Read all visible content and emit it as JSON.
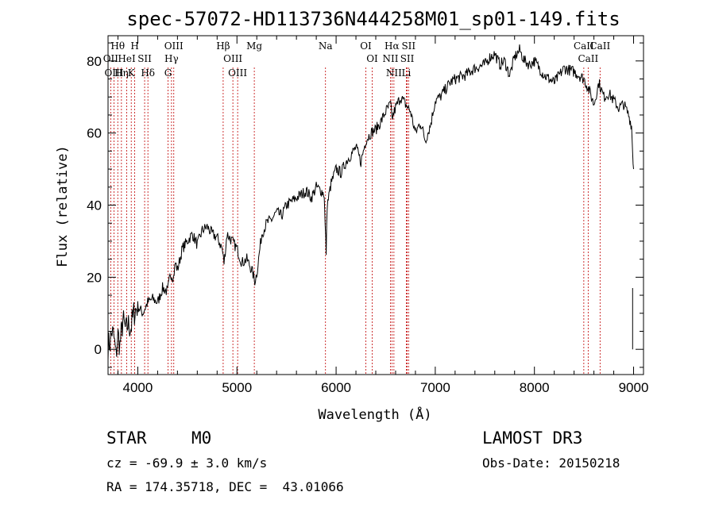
{
  "chart_data": {
    "type": "line",
    "title": "spec-57072-HD113736N444258M01_sp01-149.fits",
    "xlabel": "Wavelength (Å)",
    "ylabel": "Flux (relative)",
    "xlim": [
      3700,
      9100
    ],
    "ylim": [
      -7,
      87
    ],
    "xticks": [
      4000,
      5000,
      6000,
      7000,
      8000,
      9000
    ],
    "yticks": [
      0,
      20,
      40,
      60,
      80
    ],
    "series": [
      {
        "name": "flux",
        "x": [
          3700,
          3720,
          3740,
          3760,
          3780,
          3800,
          3820,
          3850,
          3880,
          3900,
          3930,
          3960,
          4000,
          4050,
          4100,
          4150,
          4200,
          4250,
          4300,
          4330,
          4360,
          4380,
          4400,
          4450,
          4500,
          4550,
          4600,
          4650,
          4700,
          4750,
          4800,
          4850,
          4870,
          4900,
          4950,
          5000,
          5050,
          5100,
          5150,
          5180,
          5200,
          5250,
          5300,
          5350,
          5400,
          5450,
          5500,
          5550,
          5600,
          5650,
          5700,
          5750,
          5800,
          5850,
          5880,
          5890,
          5900,
          5910,
          5950,
          6000,
          6050,
          6100,
          6150,
          6200,
          6250,
          6300,
          6350,
          6400,
          6450,
          6500,
          6550,
          6563,
          6600,
          6650,
          6700,
          6750,
          6800,
          6850,
          6900,
          6950,
          7000,
          7050,
          7100,
          7150,
          7200,
          7300,
          7400,
          7500,
          7550,
          7600,
          7650,
          7700,
          7750,
          7800,
          7850,
          7900,
          7950,
          8000,
          8100,
          8200,
          8300,
          8400,
          8500,
          8550,
          8600,
          8650,
          8700,
          8750,
          8800,
          8850,
          8900,
          8950,
          8980,
          8990,
          9000
        ],
        "values": [
          1,
          2,
          5,
          3,
          -2,
          4,
          1,
          8,
          5,
          7,
          6,
          10,
          12,
          10,
          13,
          14,
          13,
          17,
          16,
          21,
          20,
          24,
          22,
          28,
          30,
          32,
          29,
          33,
          34,
          32,
          31,
          28,
          24,
          32,
          30,
          28,
          24,
          25,
          22,
          19,
          21,
          32,
          35,
          36,
          38,
          37,
          40,
          41,
          42,
          43,
          44,
          42,
          45,
          44,
          43,
          34,
          27,
          40,
          46,
          50,
          49,
          52,
          54,
          56,
          52,
          58,
          60,
          61,
          63,
          66,
          68,
          64,
          67,
          70,
          68,
          66,
          60,
          63,
          58,
          62,
          69,
          70,
          72,
          74,
          75,
          76,
          78,
          79,
          81,
          82,
          79,
          80,
          76,
          81,
          83,
          80,
          79,
          80,
          76,
          74,
          78,
          77,
          75,
          72,
          68,
          74,
          70,
          71,
          69,
          67,
          68,
          65,
          62,
          55,
          50
        ]
      }
    ],
    "emission_lines": [
      {
        "label": "Hθ",
        "x": 3798
      },
      {
        "label": "OII",
        "x": 3727
      },
      {
        "label": "OIII",
        "x": 3760
      },
      {
        "label": "HeI",
        "x": 3889
      },
      {
        "label": "Hη",
        "x": 3835
      },
      {
        "label": "K",
        "x": 3934
      },
      {
        "label": "H",
        "x": 3969
      },
      {
        "label": "SII",
        "x": 4069
      },
      {
        "label": "Hδ",
        "x": 4102
      },
      {
        "label": "OIII",
        "x": 4363
      },
      {
        "label": "Hγ",
        "x": 4340
      },
      {
        "label": "G",
        "x": 4305
      },
      {
        "label": "Hβ",
        "x": 4861
      },
      {
        "label": "OIII",
        "x": 4959
      },
      {
        "label": "OIII",
        "x": 5007
      },
      {
        "label": "Mg",
        "x": 5175
      },
      {
        "label": "Na",
        "x": 5893
      },
      {
        "label": "OI",
        "x": 6300
      },
      {
        "label": "OI",
        "x": 6364
      },
      {
        "label": "Hα",
        "x": 6563
      },
      {
        "label": "NII",
        "x": 6548
      },
      {
        "label": "NII",
        "x": 6583
      },
      {
        "label": "SII",
        "x": 6717
      },
      {
        "label": "Li",
        "x": 6708
      },
      {
        "label": "SII",
        "x": 6731
      },
      {
        "label": "CaII",
        "x": 8498
      },
      {
        "label": "CaII",
        "x": 8542
      },
      {
        "label": "CaII",
        "x": 8662
      }
    ]
  },
  "footer": {
    "object_class": "STAR",
    "subclass": "M0",
    "survey": "LAMOST DR3",
    "cz": "cz = -69.9 ± 3.0 km/s",
    "obs_date": "Obs-Date: 20150218",
    "coords": "RA = 174.35718, DEC =  43.01066"
  },
  "colors": {
    "spectrum": "#000000",
    "line_marker": "#c00000",
    "axes": "#000000"
  }
}
